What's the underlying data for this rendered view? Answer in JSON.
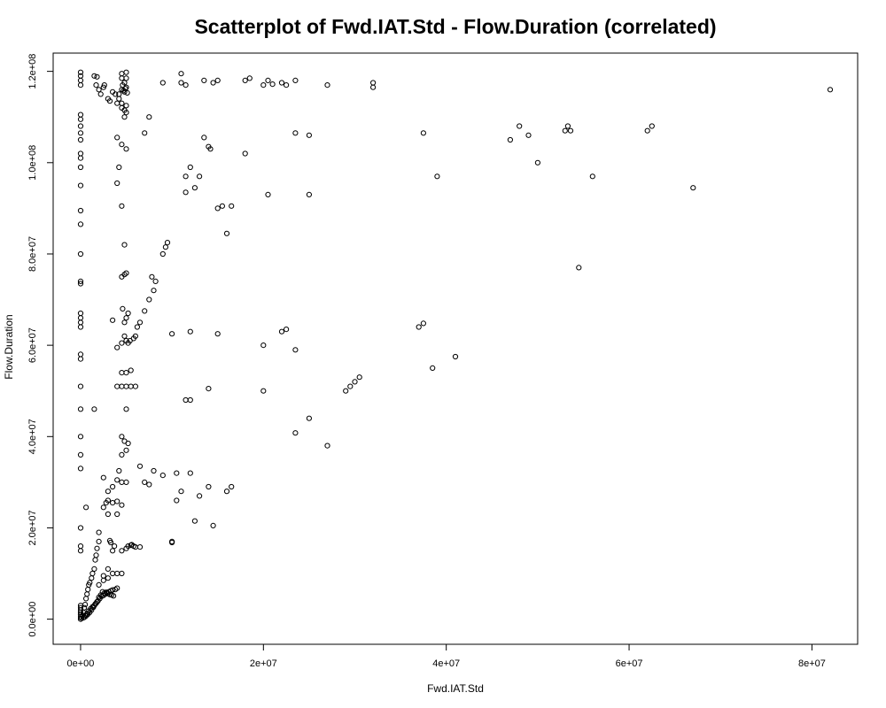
{
  "chart_data": {
    "type": "scatter",
    "title": "Scatterplot of Fwd.IAT.Std - Flow.Duration (correlated)",
    "xlabel": "Fwd.IAT.Std",
    "ylabel": "Flow.Duration",
    "xlim": [
      -3000000,
      85000000
    ],
    "ylim": [
      -5500000,
      124000000
    ],
    "x_ticks": [
      {
        "value": 0,
        "label": "0e+00"
      },
      {
        "value": 20000000,
        "label": "2e+07"
      },
      {
        "value": 40000000,
        "label": "4e+07"
      },
      {
        "value": 60000000,
        "label": "6e+07"
      },
      {
        "value": 80000000,
        "label": "8e+07"
      }
    ],
    "y_ticks": [
      {
        "value": 0,
        "label": "0.0e+00"
      },
      {
        "value": 20000000,
        "label": "2.0e+07"
      },
      {
        "value": 40000000,
        "label": "4.0e+07"
      },
      {
        "value": 60000000,
        "label": "6.0e+07"
      },
      {
        "value": 80000000,
        "label": "8.0e+07"
      },
      {
        "value": 100000000,
        "label": "1.0e+08"
      },
      {
        "value": 120000000,
        "label": "1.2e+08"
      }
    ],
    "grid": false,
    "marker": "open-circle",
    "point_color": "#000000",
    "points": [
      [
        0,
        119800000
      ],
      [
        0,
        119000000
      ],
      [
        0,
        118000000
      ],
      [
        0,
        117000000
      ],
      [
        0,
        110500000
      ],
      [
        0,
        109500000
      ],
      [
        0,
        108000000
      ],
      [
        0,
        106500000
      ],
      [
        0,
        105000000
      ],
      [
        0,
        102000000
      ],
      [
        0,
        101000000
      ],
      [
        0,
        99000000
      ],
      [
        0,
        95000000
      ],
      [
        0,
        89500000
      ],
      [
        0,
        86500000
      ],
      [
        0,
        80000000
      ],
      [
        0,
        74000000
      ],
      [
        0,
        73500000
      ],
      [
        0,
        67000000
      ],
      [
        0,
        66000000
      ],
      [
        0,
        65000000
      ],
      [
        0,
        64000000
      ],
      [
        0,
        58000000
      ],
      [
        0,
        57000000
      ],
      [
        0,
        51000000
      ],
      [
        0,
        46000000
      ],
      [
        0,
        40000000
      ],
      [
        0,
        36000000
      ],
      [
        0,
        33000000
      ],
      [
        0,
        20000000
      ],
      [
        0,
        16000000
      ],
      [
        0,
        15000000
      ],
      [
        0,
        3000000
      ],
      [
        0,
        2500000
      ],
      [
        0,
        2000000
      ],
      [
        0,
        1500000
      ],
      [
        0,
        1000000
      ],
      [
        0,
        500000
      ],
      [
        0,
        0
      ],
      [
        100000,
        200000
      ],
      [
        200000,
        800000
      ],
      [
        300000,
        1500000
      ],
      [
        400000,
        2500000
      ],
      [
        500000,
        3200000
      ],
      [
        600000,
        4500000
      ],
      [
        700000,
        5500000
      ],
      [
        800000,
        6500000
      ],
      [
        900000,
        7500000
      ],
      [
        1000000,
        8000000
      ],
      [
        1200000,
        9000000
      ],
      [
        1300000,
        10000000
      ],
      [
        1500000,
        11000000
      ],
      [
        1600000,
        13000000
      ],
      [
        1700000,
        14000000
      ],
      [
        1800000,
        15500000
      ],
      [
        2000000,
        17000000
      ],
      [
        300000,
        300000
      ],
      [
        500000,
        800000
      ],
      [
        700000,
        1200000
      ],
      [
        900000,
        1800000
      ],
      [
        1100000,
        2300000
      ],
      [
        1300000,
        2700000
      ],
      [
        1500000,
        3000000
      ],
      [
        1700000,
        3500000
      ],
      [
        1900000,
        4000000
      ],
      [
        2100000,
        4500000
      ],
      [
        2300000,
        5000000
      ],
      [
        2500000,
        5200000
      ],
      [
        2700000,
        5500000
      ],
      [
        2900000,
        5800000
      ],
      [
        3100000,
        6000000
      ],
      [
        3300000,
        6200000
      ],
      [
        3500000,
        6400000
      ],
      [
        2400000,
        6000000
      ],
      [
        2600000,
        5700000
      ],
      [
        2800000,
        5900000
      ],
      [
        3000000,
        5600000
      ],
      [
        3200000,
        5400000
      ],
      [
        3400000,
        5300000
      ],
      [
        3600000,
        5100000
      ],
      [
        3800000,
        6500000
      ],
      [
        4000000,
        6800000
      ],
      [
        2000000,
        4800000
      ],
      [
        2200000,
        5300000
      ],
      [
        1800000,
        3800000
      ],
      [
        1600000,
        3300000
      ],
      [
        1400000,
        2600000
      ],
      [
        1200000,
        2000000
      ],
      [
        1000000,
        1500000
      ],
      [
        800000,
        1100000
      ],
      [
        600000,
        700000
      ],
      [
        400000,
        400000
      ],
      [
        2500000,
        9500000
      ],
      [
        3000000,
        9000000
      ],
      [
        3500000,
        10000000
      ],
      [
        4000000,
        10000000
      ],
      [
        4500000,
        10000000
      ],
      [
        3000000,
        11000000
      ],
      [
        2000000,
        7500000
      ],
      [
        2500000,
        8500000
      ],
      [
        3500000,
        15000000
      ],
      [
        3700000,
        16000000
      ],
      [
        3200000,
        17200000
      ],
      [
        3300000,
        16800000
      ],
      [
        4500000,
        15000000
      ],
      [
        5000000,
        15500000
      ],
      [
        5200000,
        16000000
      ],
      [
        5500000,
        16200000
      ],
      [
        5800000,
        16000000
      ],
      [
        6000000,
        15800000
      ],
      [
        6500000,
        15800000
      ],
      [
        5600000,
        16300000
      ],
      [
        2000000,
        19000000
      ],
      [
        2500000,
        24500000
      ],
      [
        2800000,
        25500000
      ],
      [
        3000000,
        26000000
      ],
      [
        3500000,
        25500000
      ],
      [
        4000000,
        25800000
      ],
      [
        4500000,
        25000000
      ],
      [
        3000000,
        23000000
      ],
      [
        4000000,
        23000000
      ],
      [
        2500000,
        31000000
      ],
      [
        3000000,
        28000000
      ],
      [
        3500000,
        29000000
      ],
      [
        4000000,
        30500000
      ],
      [
        4200000,
        32500000
      ],
      [
        4500000,
        30000000
      ],
      [
        5000000,
        30000000
      ],
      [
        600000,
        24500000
      ],
      [
        1500000,
        46000000
      ],
      [
        4500000,
        40000000
      ],
      [
        4800000,
        39000000
      ],
      [
        5000000,
        37000000
      ],
      [
        5200000,
        38500000
      ],
      [
        4500000,
        36000000
      ],
      [
        4000000,
        51000000
      ],
      [
        4500000,
        51000000
      ],
      [
        5000000,
        51000000
      ],
      [
        5500000,
        51000000
      ],
      [
        6000000,
        51000000
      ],
      [
        4500000,
        54000000
      ],
      [
        5000000,
        54000000
      ],
      [
        5500000,
        54500000
      ],
      [
        5000000,
        46000000
      ],
      [
        3500000,
        65500000
      ],
      [
        4000000,
        59500000
      ],
      [
        4500000,
        60500000
      ],
      [
        4800000,
        62000000
      ],
      [
        5000000,
        61000000
      ],
      [
        5200000,
        60500000
      ],
      [
        5400000,
        61000000
      ],
      [
        4800000,
        65000000
      ],
      [
        5000000,
        66000000
      ],
      [
        4600000,
        68000000
      ],
      [
        5200000,
        67000000
      ],
      [
        5800000,
        61500000
      ],
      [
        6000000,
        62000000
      ],
      [
        6500000,
        65000000
      ],
      [
        6200000,
        64000000
      ],
      [
        7000000,
        67500000
      ],
      [
        7500000,
        70000000
      ],
      [
        8000000,
        72000000
      ],
      [
        8200000,
        74000000
      ],
      [
        7800000,
        75000000
      ],
      [
        4500000,
        75000000
      ],
      [
        4800000,
        75500000
      ],
      [
        5000000,
        75800000
      ],
      [
        4800000,
        82000000
      ],
      [
        9000000,
        80000000
      ],
      [
        9300000,
        81500000
      ],
      [
        9500000,
        82500000
      ],
      [
        4500000,
        90500000
      ],
      [
        4000000,
        95500000
      ],
      [
        4200000,
        99000000
      ],
      [
        4000000,
        105500000
      ],
      [
        4500000,
        104000000
      ],
      [
        5000000,
        103000000
      ],
      [
        4800000,
        110000000
      ],
      [
        5000000,
        111000000
      ],
      [
        4500000,
        113000000
      ],
      [
        5000000,
        112500000
      ],
      [
        4200000,
        115000000
      ],
      [
        4500000,
        116000000
      ],
      [
        4800000,
        115500000
      ],
      [
        5000000,
        116500000
      ],
      [
        4800000,
        117500000
      ],
      [
        5000000,
        118500000
      ],
      [
        4500000,
        119500000
      ],
      [
        5000000,
        119800000
      ],
      [
        4500000,
        118500000
      ],
      [
        4600000,
        117000000
      ],
      [
        4900000,
        116200000
      ],
      [
        4700000,
        115800000
      ],
      [
        5100000,
        115300000
      ],
      [
        1500000,
        119000000
      ],
      [
        1800000,
        118800000
      ],
      [
        1700000,
        117000000
      ],
      [
        2000000,
        116000000
      ],
      [
        2200000,
        115000000
      ],
      [
        2500000,
        116500000
      ],
      [
        3000000,
        114000000
      ],
      [
        3500000,
        115500000
      ],
      [
        3800000,
        115000000
      ],
      [
        4200000,
        114000000
      ],
      [
        4500000,
        112000000
      ],
      [
        4800000,
        111500000
      ],
      [
        2600000,
        117000000
      ],
      [
        3200000,
        113500000
      ],
      [
        4000000,
        113000000
      ],
      [
        7000000,
        106500000
      ],
      [
        7500000,
        110000000
      ],
      [
        9000000,
        117500000
      ],
      [
        11000000,
        119500000
      ],
      [
        11000000,
        117500000
      ],
      [
        11500000,
        117000000
      ],
      [
        13500000,
        118000000
      ],
      [
        14500000,
        117500000
      ],
      [
        15000000,
        118000000
      ],
      [
        18000000,
        118000000
      ],
      [
        18500000,
        118500000
      ],
      [
        20000000,
        117000000
      ],
      [
        20500000,
        118000000
      ],
      [
        21000000,
        117200000
      ],
      [
        22000000,
        117500000
      ],
      [
        22500000,
        117000000
      ],
      [
        23500000,
        118000000
      ],
      [
        27000000,
        117000000
      ],
      [
        32000000,
        117500000
      ],
      [
        32000000,
        116500000
      ],
      [
        13500000,
        105500000
      ],
      [
        14000000,
        103500000
      ],
      [
        14200000,
        103000000
      ],
      [
        18000000,
        102000000
      ],
      [
        12000000,
        99000000
      ],
      [
        11500000,
        97000000
      ],
      [
        13000000,
        97000000
      ],
      [
        12500000,
        94500000
      ],
      [
        11500000,
        93500000
      ],
      [
        15000000,
        90000000
      ],
      [
        15500000,
        90500000
      ],
      [
        16500000,
        90500000
      ],
      [
        16000000,
        84500000
      ],
      [
        20500000,
        93000000
      ],
      [
        25000000,
        93000000
      ],
      [
        23500000,
        106500000
      ],
      [
        25000000,
        106000000
      ],
      [
        37500000,
        106500000
      ],
      [
        39000000,
        97000000
      ],
      [
        47000000,
        105000000
      ],
      [
        48000000,
        108000000
      ],
      [
        49000000,
        106000000
      ],
      [
        50000000,
        100000000
      ],
      [
        53000000,
        107000000
      ],
      [
        53300000,
        108000000
      ],
      [
        53600000,
        107000000
      ],
      [
        56000000,
        97000000
      ],
      [
        54500000,
        77000000
      ],
      [
        62000000,
        107000000
      ],
      [
        62500000,
        108000000
      ],
      [
        67000000,
        94500000
      ],
      [
        82000000,
        116000000
      ],
      [
        10000000,
        62500000
      ],
      [
        12000000,
        63000000
      ],
      [
        15000000,
        62500000
      ],
      [
        20000000,
        60000000
      ],
      [
        22000000,
        63000000
      ],
      [
        22500000,
        63500000
      ],
      [
        23500000,
        59000000
      ],
      [
        37000000,
        64000000
      ],
      [
        37500000,
        64800000
      ],
      [
        38500000,
        55000000
      ],
      [
        41000000,
        57500000
      ],
      [
        11500000,
        48000000
      ],
      [
        12000000,
        48000000
      ],
      [
        14000000,
        50500000
      ],
      [
        20000000,
        50000000
      ],
      [
        29000000,
        50000000
      ],
      [
        29500000,
        51000000
      ],
      [
        30000000,
        52000000
      ],
      [
        30500000,
        53000000
      ],
      [
        25000000,
        44000000
      ],
      [
        23500000,
        40800000
      ],
      [
        27000000,
        38000000
      ],
      [
        6500000,
        33500000
      ],
      [
        7000000,
        30000000
      ],
      [
        7500000,
        29500000
      ],
      [
        8000000,
        32500000
      ],
      [
        9000000,
        31500000
      ],
      [
        10500000,
        32000000
      ],
      [
        12000000,
        32000000
      ],
      [
        11000000,
        28000000
      ],
      [
        14000000,
        29000000
      ],
      [
        13000000,
        27000000
      ],
      [
        16000000,
        28000000
      ],
      [
        16500000,
        29000000
      ],
      [
        10500000,
        26000000
      ],
      [
        12500000,
        21500000
      ],
      [
        14500000,
        20500000
      ],
      [
        10000000,
        17000000
      ],
      [
        10000000,
        16800000
      ]
    ]
  }
}
